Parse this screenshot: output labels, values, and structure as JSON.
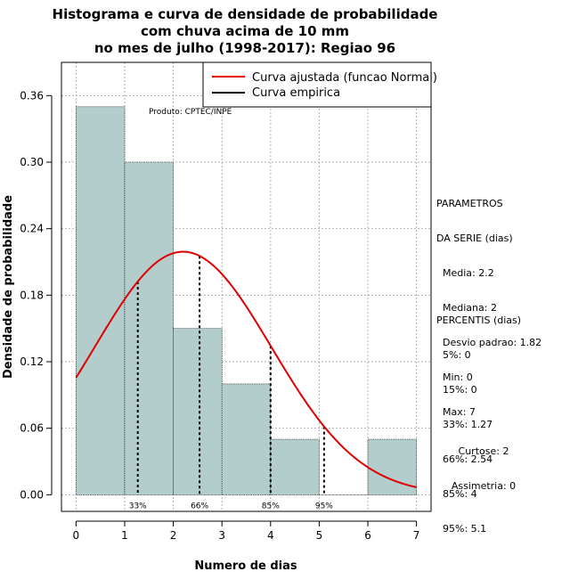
{
  "chart_data": {
    "type": "histogram",
    "title_lines": [
      "Histograma e curva de densidade de probabilidade",
      "com chuva acima de 10 mm",
      "no mes de julho (1998-2017): Regiao 96"
    ],
    "xlabel": "Numero de dias",
    "ylabel": "Densidade de probabilidade",
    "xlim": [
      -0.3,
      7.3
    ],
    "ylim": [
      -0.015,
      0.39
    ],
    "xticks": [
      "0",
      "1",
      "2",
      "3",
      "4",
      "5",
      "6",
      "7"
    ],
    "yticks": [
      "0.00",
      "0.06",
      "0.12",
      "0.18",
      "0.24",
      "0.30",
      "0.36"
    ],
    "grid": true,
    "bins": [
      {
        "from": 0,
        "to": 1,
        "density": 0.35
      },
      {
        "from": 1,
        "to": 2,
        "density": 0.3
      },
      {
        "from": 2,
        "to": 3,
        "density": 0.15
      },
      {
        "from": 3,
        "to": 4,
        "density": 0.1
      },
      {
        "from": 4,
        "to": 5,
        "density": 0.05
      },
      {
        "from": 5,
        "to": 6,
        "density": 0.0
      },
      {
        "from": 6,
        "to": 7,
        "density": 0.05
      }
    ],
    "normal_fit": {
      "mean": 2.2,
      "sd": 1.82,
      "x_range": [
        0,
        7
      ]
    },
    "percentile_lines": [
      {
        "label": "33%",
        "x": 1.27
      },
      {
        "label": "66%",
        "x": 2.54
      },
      {
        "label": "85%",
        "x": 4.0
      },
      {
        "label": "95%",
        "x": 5.1
      }
    ],
    "legend": {
      "position": "top-right",
      "entries": [
        {
          "label": "Curva ajustada (funcao Normal)",
          "color": "#e00000"
        },
        {
          "label": "Curva empirica",
          "color": "#000000"
        }
      ]
    },
    "annotation": "Produto: CPTEC/INPE",
    "colors": {
      "bar_fill": "#b3cccc",
      "curve": "#e00000",
      "grid": "#b0b0b0"
    }
  },
  "side_panel": {
    "params_lines": [
      "PARAMETROS",
      "DA SERIE (dias)",
      "  Media: 2.2",
      "  Mediana: 2",
      "  Desvio padrao: 1.82",
      "  Min: 0",
      "  Max: 7"
    ],
    "percentis_lines": [
      "PERCENTIS (dias)",
      "  5%: 0",
      "  15%: 0",
      "  33%: 1.27",
      "  66%: 2.54",
      "  85%: 4",
      "  95%: 5.1"
    ],
    "shape_lines": [
      "Curtose: 2",
      "Assimetria: 0"
    ]
  }
}
